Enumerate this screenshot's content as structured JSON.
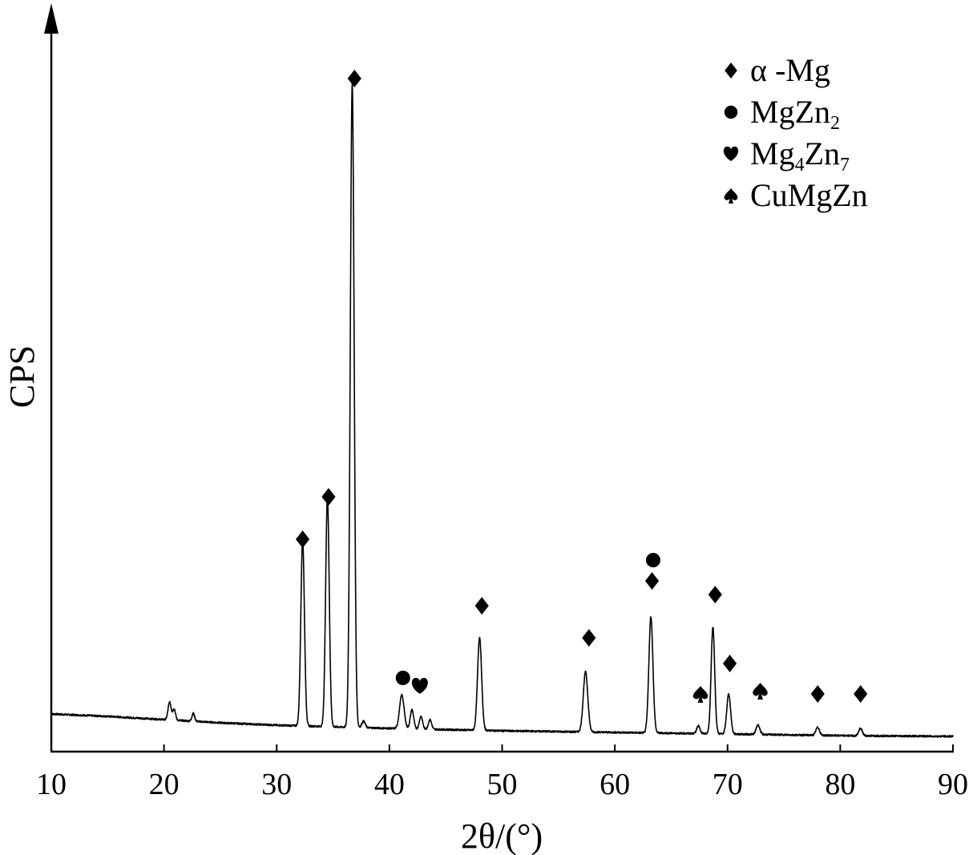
{
  "chart_data": {
    "type": "line",
    "title": "",
    "xlabel": "2θ/(°)",
    "ylabel": "CPS",
    "xlim": [
      10,
      90
    ],
    "x_ticks": [
      "10",
      "20",
      "30",
      "40",
      "50",
      "60",
      "70",
      "80",
      "90"
    ],
    "y_ticks": [],
    "grid": false,
    "legend_position": "top-right",
    "baseline": [
      {
        "x": 10,
        "y": 47
      },
      {
        "x": 15,
        "y": 44
      },
      {
        "x": 20,
        "y": 40
      },
      {
        "x": 25,
        "y": 36
      },
      {
        "x": 30,
        "y": 33
      },
      {
        "x": 35,
        "y": 31
      },
      {
        "x": 40,
        "y": 29
      },
      {
        "x": 50,
        "y": 26
      },
      {
        "x": 60,
        "y": 24
      },
      {
        "x": 70,
        "y": 22
      },
      {
        "x": 80,
        "y": 20
      },
      {
        "x": 90,
        "y": 19
      }
    ],
    "peaks": [
      {
        "x": 20.5,
        "height": 22,
        "width": 0.14
      },
      {
        "x": 20.9,
        "height": 14,
        "width": 0.12
      },
      {
        "x": 22.6,
        "height": 10,
        "width": 0.12
      },
      {
        "x": 32.3,
        "height": 232,
        "width": 0.16
      },
      {
        "x": 34.5,
        "height": 286,
        "width": 0.16
      },
      {
        "x": 36.7,
        "height": 803,
        "width": 0.17
      },
      {
        "x": 37.7,
        "height": 8,
        "width": 0.15
      },
      {
        "x": 41.1,
        "height": 42,
        "width": 0.2
      },
      {
        "x": 42.0,
        "height": 24,
        "width": 0.15
      },
      {
        "x": 42.8,
        "height": 16,
        "width": 0.14
      },
      {
        "x": 43.6,
        "height": 12,
        "width": 0.14
      },
      {
        "x": 48.0,
        "height": 116,
        "width": 0.18
      },
      {
        "x": 57.4,
        "height": 75,
        "width": 0.2
      },
      {
        "x": 63.2,
        "height": 145,
        "width": 0.18
      },
      {
        "x": 67.4,
        "height": 10,
        "width": 0.14
      },
      {
        "x": 68.7,
        "height": 133,
        "width": 0.16
      },
      {
        "x": 70.1,
        "height": 50,
        "width": 0.17
      },
      {
        "x": 72.7,
        "height": 12,
        "width": 0.16
      },
      {
        "x": 78.0,
        "height": 10,
        "width": 0.16
      },
      {
        "x": 81.8,
        "height": 9,
        "width": 0.16
      }
    ],
    "peak_markers": [
      {
        "x": 32.3,
        "y": 265,
        "phase": "alpha-Mg"
      },
      {
        "x": 34.6,
        "y": 318,
        "phase": "alpha-Mg"
      },
      {
        "x": 36.9,
        "y": 840,
        "phase": "alpha-Mg"
      },
      {
        "x": 41.2,
        "y": 92,
        "phase": "MgZn2"
      },
      {
        "x": 42.7,
        "y": 82,
        "phase": "Mg4Zn7"
      },
      {
        "x": 48.2,
        "y": 182,
        "phase": "alpha-Mg"
      },
      {
        "x": 57.7,
        "y": 142,
        "phase": "alpha-Mg"
      },
      {
        "x": 63.3,
        "y": 213,
        "phase": "alpha-Mg"
      },
      {
        "x": 63.4,
        "y": 239,
        "phase": "MgZn2"
      },
      {
        "x": 67.6,
        "y": 72,
        "phase": "CuMgZn"
      },
      {
        "x": 68.9,
        "y": 196,
        "phase": "alpha-Mg"
      },
      {
        "x": 70.2,
        "y": 110,
        "phase": "alpha-Mg"
      },
      {
        "x": 72.9,
        "y": 76,
        "phase": "CuMgZn"
      },
      {
        "x": 78.0,
        "y": 72,
        "phase": "alpha-Mg"
      },
      {
        "x": 81.8,
        "y": 72,
        "phase": "alpha-Mg"
      }
    ],
    "legend": [
      {
        "phase": "alpha-Mg",
        "main": "α -Mg",
        "sub": "",
        "tail": "",
        "sub2": ""
      },
      {
        "phase": "MgZn2",
        "main": "MgZn",
        "sub": "2",
        "tail": "",
        "sub2": ""
      },
      {
        "phase": "Mg4Zn7",
        "main": "Mg",
        "sub": "4",
        "tail": "Zn",
        "sub2": "7"
      },
      {
        "phase": "CuMgZn",
        "main": "CuMgZn",
        "sub": "",
        "tail": "",
        "sub2": ""
      }
    ]
  }
}
